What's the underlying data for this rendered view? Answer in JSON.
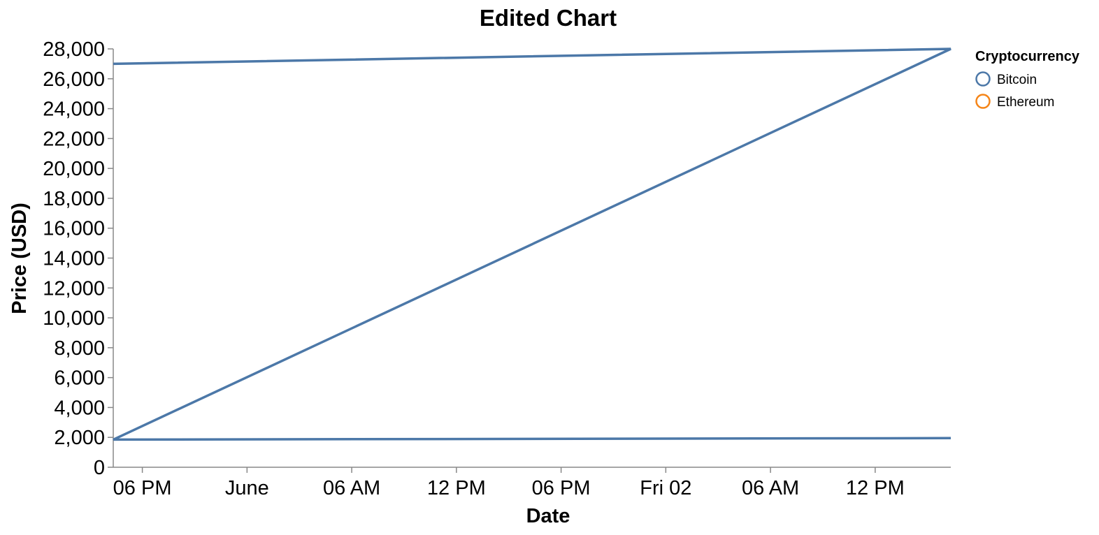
{
  "chart_data": {
    "type": "line",
    "title": "Edited Chart",
    "xlabel": "Date",
    "ylabel": "Price (USD)",
    "ylim": [
      0,
      28000
    ],
    "xlim": [
      "2023-05-31 16:20",
      "2023-06-02 16:20"
    ],
    "y_ticks": [
      0,
      2000,
      4000,
      6000,
      8000,
      10000,
      12000,
      14000,
      16000,
      18000,
      20000,
      22000,
      24000,
      26000,
      28000
    ],
    "y_tick_labels": [
      "0",
      "2,000",
      "4,000",
      "6,000",
      "8,000",
      "10,000",
      "12,000",
      "14,000",
      "16,000",
      "18,000",
      "20,000",
      "22,000",
      "24,000",
      "26,000",
      "28,000"
    ],
    "x_ticks": [
      {
        "t": "2023-05-31 18:00",
        "label": "06 PM"
      },
      {
        "t": "2023-06-01 00:00",
        "label": "June"
      },
      {
        "t": "2023-06-01 06:00",
        "label": "06 AM"
      },
      {
        "t": "2023-06-01 12:00",
        "label": "12 PM"
      },
      {
        "t": "2023-06-01 18:00",
        "label": "06 PM"
      },
      {
        "t": "2023-06-02 00:00",
        "label": "Fri 02"
      },
      {
        "t": "2023-06-02 06:00",
        "label": "06 AM"
      },
      {
        "t": "2023-06-02 12:00",
        "label": "12 PM"
      }
    ],
    "grid": false,
    "legend": {
      "title": "Cryptocurrency",
      "position": "top-right",
      "entries": [
        {
          "label": "Bitcoin",
          "color": "#4c78a8"
        },
        {
          "label": "Ethereum",
          "color": "#f58518"
        }
      ]
    },
    "series": [
      {
        "name": "Bitcoin",
        "color": "#4c78a8",
        "points": [
          {
            "x": "2023-05-31 16:20",
            "y": 27000
          },
          {
            "x": "2023-06-02 16:20",
            "y": 28000
          },
          {
            "x": "2023-05-31 16:20",
            "y": 1850
          },
          {
            "x": "2023-06-02 16:20",
            "y": 1950
          }
        ]
      }
    ]
  }
}
